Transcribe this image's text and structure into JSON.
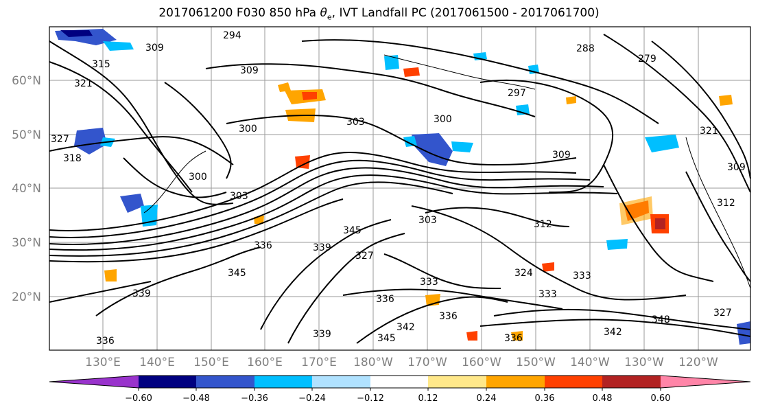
{
  "title": "2017061200 F030 850 hPa θe, IVT Landfall PC (2017061500 - 2017061700)",
  "title_parts": {
    "prefix": "2017061200 F030 850 hPa ",
    "theta": "θ",
    "sub": "e",
    "suffix": ", IVT Landfall PC (2017061500 - 2017061700)"
  },
  "map": {
    "lat_labels": [
      "60°N",
      "50°N",
      "40°N",
      "30°N",
      "20°N"
    ],
    "lon_labels": [
      "130°E",
      "140°E",
      "150°E",
      "160°E",
      "170°E",
      "180°W",
      "170°W",
      "160°W",
      "150°W",
      "140°W",
      "130°W",
      "120°W"
    ],
    "contour_labels": [
      "294",
      "309",
      "315",
      "321",
      "327",
      "318",
      "309",
      "300",
      "303",
      "303",
      "300",
      "309",
      "312",
      "300",
      "303",
      "345",
      "336",
      "339",
      "327",
      "345",
      "339",
      "336",
      "333",
      "345",
      "342",
      "339",
      "336",
      "333",
      "324",
      "333",
      "342",
      "348",
      "327",
      "336",
      "336",
      "312",
      "297",
      "321",
      "309",
      "288",
      "279"
    ]
  },
  "colorbar": {
    "colors": [
      "#9933cc",
      "#000080",
      "#3355cc",
      "#00bfff",
      "#b0e2ff",
      "#ffffff",
      "#ffe88a",
      "#ffa500",
      "#ff4000",
      "#b22222",
      "#ff85a8"
    ],
    "tick_labels": [
      "−0.60",
      "−0.48",
      "−0.36",
      "−0.24",
      "−0.12",
      "0.12",
      "0.24",
      "0.36",
      "0.48",
      "0.60"
    ]
  }
}
